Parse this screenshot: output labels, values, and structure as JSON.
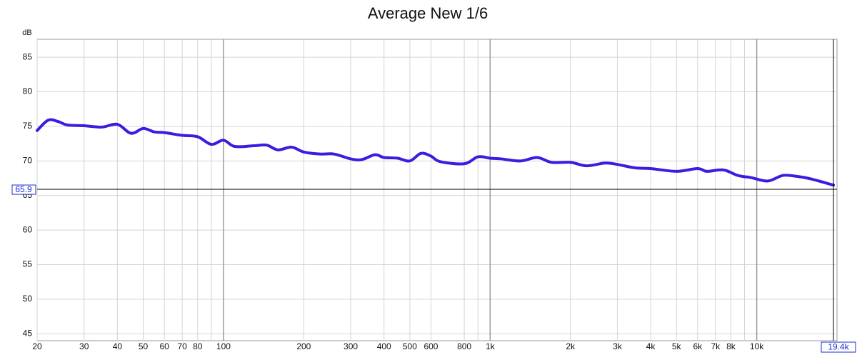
{
  "chart_data": {
    "type": "line",
    "title": "Average New 1/6",
    "ylabel": "dB",
    "color": "#3a1ee0",
    "log_x": true,
    "grid": true,
    "x": [
      20,
      22,
      24,
      26,
      30,
      35,
      40,
      45,
      50,
      55,
      60,
      70,
      80,
      90,
      100,
      110,
      130,
      145,
      160,
      180,
      200,
      230,
      260,
      300,
      330,
      370,
      400,
      450,
      500,
      550,
      600,
      650,
      800,
      900,
      1000,
      1100,
      1300,
      1500,
      1700,
      2000,
      2300,
      2700,
      3000,
      3500,
      4000,
      5000,
      6000,
      6500,
      7500,
      8500,
      9500,
      11000,
      12500,
      14000,
      16000,
      19400
    ],
    "values": [
      74.4,
      75.9,
      75.7,
      75.2,
      75.1,
      74.9,
      75.3,
      74.0,
      74.7,
      74.2,
      74.1,
      73.7,
      73.5,
      72.4,
      73.0,
      72.1,
      72.2,
      72.3,
      71.6,
      72.0,
      71.3,
      71.0,
      71.0,
      70.3,
      70.2,
      70.9,
      70.5,
      70.4,
      70.0,
      71.1,
      70.7,
      69.9,
      69.6,
      70.6,
      70.4,
      70.3,
      70.0,
      70.5,
      69.8,
      69.8,
      69.3,
      69.7,
      69.5,
      69.0,
      68.9,
      68.5,
      68.9,
      68.5,
      68.7,
      67.9,
      67.6,
      67.1,
      67.9,
      67.8,
      67.4,
      66.5
    ],
    "xlim": [
      20,
      20000
    ],
    "ylim": [
      44,
      87.6
    ],
    "xticks": [
      20,
      30,
      40,
      50,
      60,
      70,
      80,
      100,
      200,
      300,
      400,
      500,
      600,
      800,
      {
        "value": 1000,
        "label": "1k"
      },
      {
        "value": 2000,
        "label": "2k"
      },
      {
        "value": 3000,
        "label": "3k"
      },
      {
        "value": 4000,
        "label": "4k"
      },
      {
        "value": 5000,
        "label": "5k"
      },
      {
        "value": 6000,
        "label": "6k"
      },
      {
        "value": 7000,
        "label": "7k"
      },
      {
        "value": 8000,
        "label": "8k"
      },
      {
        "value": 10000,
        "label": "10k"
      }
    ],
    "x_minor_ticks": [
      90,
      900,
      9000
    ],
    "yticks": [
      45,
      50,
      55,
      60,
      65,
      70,
      75,
      80,
      85
    ],
    "cursor_y": 65.9,
    "cursor_x": {
      "value": 19400,
      "label": "19.4k"
    }
  }
}
